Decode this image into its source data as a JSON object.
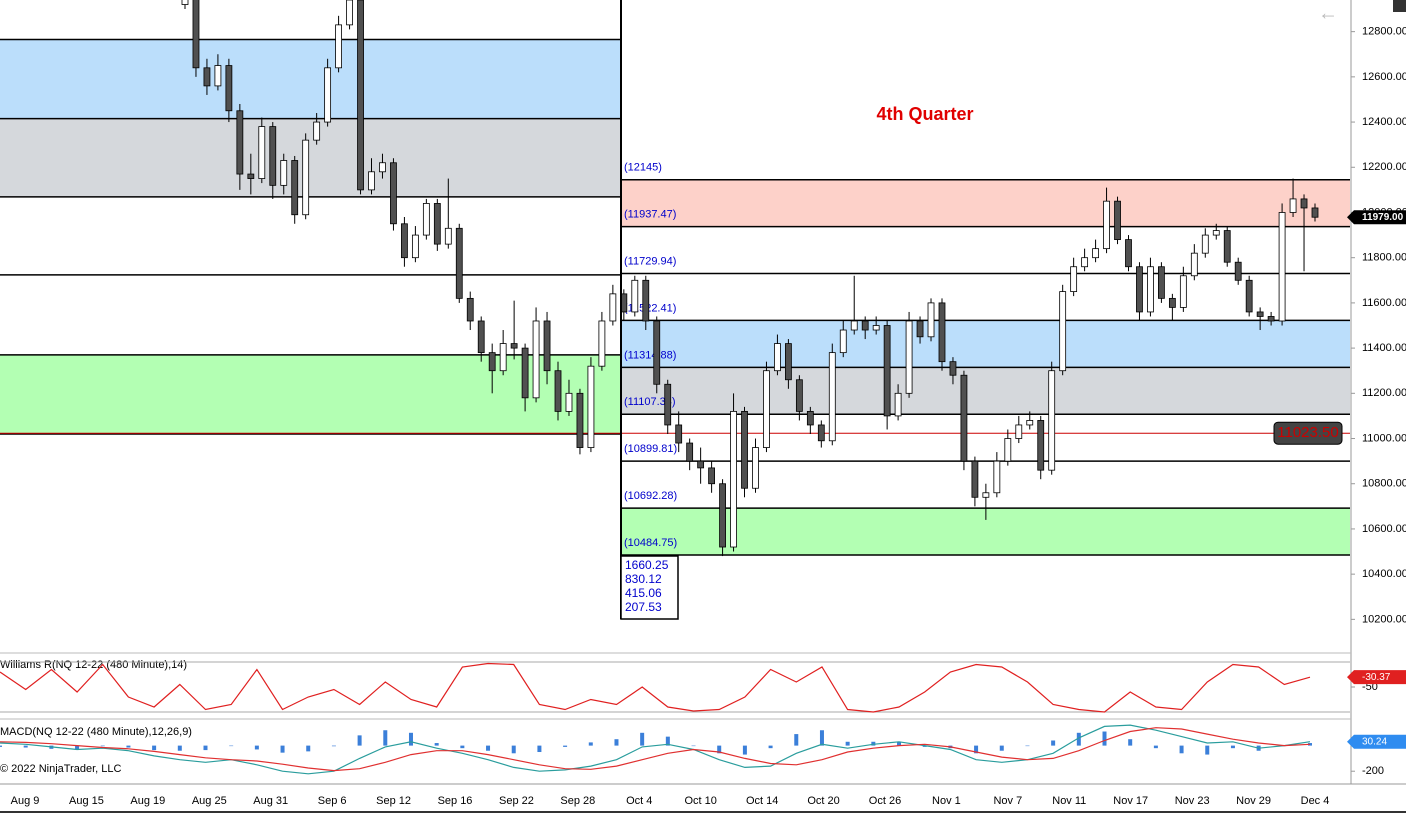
{
  "chart_data": [
    {
      "type": "candlestick",
      "title": "4th Quarter",
      "ylim": [
        10060,
        12940
      ],
      "yticks": [
        {
          "value": 12800,
          "label": "12800.00"
        },
        {
          "value": 12600,
          "label": "12600.00"
        },
        {
          "value": 12400,
          "label": "12400.00"
        },
        {
          "value": 12200,
          "label": "12200.00"
        },
        {
          "value": 12000,
          "label": "12000.00"
        },
        {
          "value": 11800,
          "label": "11800.00"
        },
        {
          "value": 11600,
          "label": "11600.00"
        },
        {
          "value": 11400,
          "label": "11400.00"
        },
        {
          "value": 11200,
          "label": "11200.00"
        },
        {
          "value": 11000,
          "label": "11000.00"
        },
        {
          "value": 10800,
          "label": "10800.00"
        },
        {
          "value": 10600,
          "label": "10600.00"
        },
        {
          "value": 10400,
          "label": "10400.00"
        },
        {
          "value": 10200,
          "label": "10200.00"
        }
      ],
      "categories": [
        "Aug 9",
        "Aug 15",
        "Aug 19",
        "Aug 25",
        "Aug 31",
        "Sep 6",
        "Sep 12",
        "Sep 16",
        "Sep 22",
        "Sep 28",
        "Oct 4",
        "Oct 10",
        "Oct 14",
        "Oct 20",
        "Oct 26",
        "Nov 1",
        "Nov 7",
        "Nov 11",
        "Nov 17",
        "Nov 23",
        "Nov 29",
        "Dec 4"
      ],
      "up_color": "#ffffff",
      "down_color": "#505050",
      "ohlc": [
        [
          12920,
          12990,
          12900,
          12950
        ],
        [
          12980,
          13000,
          12600,
          12640
        ],
        [
          12640,
          12680,
          12520,
          12560
        ],
        [
          12560,
          12700,
          12540,
          12650
        ],
        [
          12650,
          12680,
          12400,
          12450
        ],
        [
          12450,
          12480,
          12100,
          12170
        ],
        [
          12170,
          12260,
          12080,
          12150
        ],
        [
          12150,
          12420,
          12130,
          12380
        ],
        [
          12380,
          12400,
          12060,
          12120
        ],
        [
          12120,
          12260,
          12080,
          12230
        ],
        [
          12230,
          12250,
          11950,
          11990
        ],
        [
          11990,
          12350,
          11970,
          12320
        ],
        [
          12320,
          12440,
          12300,
          12400
        ],
        [
          12400,
          12680,
          12380,
          12640
        ],
        [
          12640,
          12870,
          12620,
          12830
        ],
        [
          12830,
          13000,
          12810,
          12940
        ],
        [
          12940,
          12960,
          12080,
          12100
        ],
        [
          12100,
          12240,
          12080,
          12180
        ],
        [
          12180,
          12260,
          12150,
          12220
        ],
        [
          12220,
          12240,
          11920,
          11950
        ],
        [
          11950,
          11980,
          11760,
          11800
        ],
        [
          11800,
          11940,
          11780,
          11900
        ],
        [
          11900,
          12060,
          11880,
          12040
        ],
        [
          12040,
          12060,
          11830,
          11860
        ],
        [
          11860,
          12150,
          11840,
          11930
        ],
        [
          11930,
          11950,
          11600,
          11620
        ],
        [
          11620,
          11650,
          11480,
          11520
        ],
        [
          11520,
          11540,
          11340,
          11380
        ],
        [
          11380,
          11420,
          11200,
          11300
        ],
        [
          11300,
          11480,
          11280,
          11420
        ],
        [
          11420,
          11610,
          11350,
          11400
        ],
        [
          11400,
          11420,
          11120,
          11180
        ],
        [
          11180,
          11580,
          11160,
          11520
        ],
        [
          11520,
          11560,
          11240,
          11300
        ],
        [
          11300,
          11340,
          11080,
          11120
        ],
        [
          11120,
          11260,
          11100,
          11200
        ],
        [
          11200,
          11220,
          10930,
          10960
        ],
        [
          10960,
          11360,
          10940,
          11320
        ],
        [
          11320,
          11560,
          11300,
          11520
        ],
        [
          11520,
          11680,
          11500,
          11640
        ],
        [
          11640,
          11660,
          11520,
          11560
        ],
        [
          11560,
          11720,
          11540,
          11700
        ],
        [
          11700,
          11720,
          11480,
          11520
        ],
        [
          11520,
          11540,
          11200,
          11240
        ],
        [
          11240,
          11260,
          11020,
          11060
        ],
        [
          11060,
          11120,
          10940,
          10980
        ],
        [
          10980,
          11000,
          10860,
          10900
        ],
        [
          10900,
          10960,
          10800,
          10870
        ],
        [
          10870,
          10900,
          10760,
          10800
        ],
        [
          10800,
          10820,
          10480,
          10520
        ],
        [
          10520,
          11200,
          10500,
          11120
        ],
        [
          11120,
          11140,
          10740,
          10780
        ],
        [
          10780,
          11000,
          10760,
          10960
        ],
        [
          10960,
          11340,
          10940,
          11300
        ],
        [
          11300,
          11460,
          11280,
          11420
        ],
        [
          11420,
          11440,
          11220,
          11260
        ],
        [
          11260,
          11280,
          11080,
          11120
        ],
        [
          11120,
          11140,
          11020,
          11060
        ],
        [
          11060,
          11080,
          10960,
          10990
        ],
        [
          10990,
          11420,
          10970,
          11380
        ],
        [
          11380,
          11520,
          11360,
          11480
        ],
        [
          11480,
          11720,
          11460,
          11520
        ],
        [
          11520,
          11540,
          11440,
          11480
        ],
        [
          11480,
          11540,
          11460,
          11500
        ],
        [
          11500,
          11520,
          11040,
          11100
        ],
        [
          11100,
          11240,
          11080,
          11200
        ],
        [
          11200,
          11560,
          11180,
          11520
        ],
        [
          11520,
          11540,
          11420,
          11450
        ],
        [
          11450,
          11620,
          11430,
          11600
        ],
        [
          11600,
          11620,
          11300,
          11340
        ],
        [
          11340,
          11360,
          11240,
          11280
        ],
        [
          11280,
          11300,
          10860,
          10900
        ],
        [
          10900,
          10920,
          10700,
          10740
        ],
        [
          10740,
          10800,
          10640,
          10760
        ],
        [
          10760,
          10940,
          10740,
          10900
        ],
        [
          10900,
          11040,
          10880,
          11000
        ],
        [
          11000,
          11100,
          10980,
          11060
        ],
        [
          11060,
          11120,
          11040,
          11080
        ],
        [
          11080,
          11100,
          10820,
          10860
        ],
        [
          10860,
          11340,
          10840,
          11300
        ],
        [
          11300,
          11680,
          11280,
          11650
        ],
        [
          11650,
          11800,
          11630,
          11760
        ],
        [
          11760,
          11840,
          11740,
          11800
        ],
        [
          11800,
          11880,
          11780,
          11840
        ],
        [
          11840,
          12110,
          11820,
          12050
        ],
        [
          12050,
          12070,
          11860,
          11880
        ],
        [
          11880,
          11900,
          11740,
          11760
        ],
        [
          11760,
          11780,
          11520,
          11560
        ],
        [
          11560,
          11800,
          11540,
          11760
        ],
        [
          11760,
          11780,
          11600,
          11620
        ],
        [
          11620,
          11640,
          11520,
          11580
        ],
        [
          11580,
          11760,
          11560,
          11720
        ],
        [
          11720,
          11860,
          11700,
          11820
        ],
        [
          11820,
          11930,
          11800,
          11900
        ],
        [
          11900,
          11950,
          11880,
          11920
        ],
        [
          11920,
          11940,
          11760,
          11780
        ],
        [
          11780,
          11800,
          11680,
          11700
        ],
        [
          11700,
          11720,
          11540,
          11560
        ],
        [
          11560,
          11580,
          11480,
          11540
        ],
        [
          11540,
          11560,
          11500,
          11520
        ],
        [
          11520,
          12040,
          11500,
          12000
        ],
        [
          12000,
          12150,
          11980,
          12060
        ],
        [
          12060,
          12080,
          11740,
          12020
        ],
        [
          12020,
          12040,
          11960,
          11979
        ]
      ],
      "zones_left": {
        "levels": [
          12765,
          12415,
          12069,
          11724,
          11370,
          11020
        ],
        "fills": [
          "#bbdefb",
          "#d5d8dc",
          null,
          null,
          "#b3ffb3"
        ]
      },
      "zones_right": {
        "levels": [
          {
            "value": 12145,
            "label": "(12145)"
          },
          {
            "value": 11937.47,
            "label": "(11937.47)"
          },
          {
            "value": 11729.94,
            "label": "(11729.94)"
          },
          {
            "value": 11522.41,
            "label": "(11522.41)"
          },
          {
            "value": 11314.88,
            "label": "(11314.88)"
          },
          {
            "value": 11107.34,
            "label": "(11107.34)"
          },
          {
            "value": 10899.81,
            "label": "(10899.81)"
          },
          {
            "value": 10692.28,
            "label": "(10692.28)"
          },
          {
            "value": 10484.75,
            "label": "(10484.75)"
          }
        ],
        "fills": [
          "#fdd1c9",
          null,
          null,
          "#bbdefb",
          "#d5d8dc",
          null,
          null,
          "#b3ffb3"
        ],
        "label_color": "#0000cc"
      },
      "reference_line": {
        "value": 11023.5,
        "label": "11023.50",
        "color": "#cc0000"
      },
      "last_price": {
        "value": 11979,
        "label": "11979.00"
      },
      "range_box": [
        1660.25,
        830.12,
        415.06,
        207.53
      ]
    },
    {
      "type": "line",
      "title": "Williams R(NQ 12-22 (480 Minute),14)",
      "ylim": [
        -112,
        14
      ],
      "yticks": [
        -50
      ],
      "guides": [
        0,
        -100
      ],
      "series": [
        {
          "color": "#e02020",
          "values": [
            -20,
            -55,
            -15,
            -60,
            -5,
            -70,
            -90,
            -45,
            -95,
            -85,
            -15,
            -95,
            -70,
            -55,
            -85,
            -40,
            -75,
            -90,
            -10,
            -3,
            -5,
            -85,
            -95,
            -75,
            -85,
            -50,
            -90,
            -98,
            -95,
            -70,
            -15,
            -40,
            -10,
            -95,
            -100,
            -90,
            -60,
            -20,
            -5,
            -10,
            -40,
            -85,
            -95,
            -100,
            -60,
            -90,
            -95,
            -40,
            -5,
            -10,
            -45,
            -30.37
          ]
        }
      ]
    },
    {
      "type": "macd",
      "title": "MACD(NQ 12-22 (480 Minute),12,26,9)",
      "ylim": [
        -292,
        200
      ],
      "yticks": [
        -200
      ],
      "series": [
        {
          "color": "#2a9d9d",
          "values": [
            20,
            10,
            -10,
            -30,
            -20,
            -40,
            -80,
            -110,
            -130,
            -110,
            -150,
            -200,
            -220,
            -200,
            -100,
            -10,
            30,
            -20,
            -60,
            -110,
            -170,
            -200,
            -190,
            -160,
            -110,
            -10,
            10,
            -30,
            -110,
            -170,
            -160,
            -60,
            10,
            -20,
            10,
            30,
            0,
            -30,
            -110,
            -130,
            -110,
            -60,
            60,
            150,
            160,
            120,
            70,
            20,
            30,
            -20,
            0,
            30.24
          ]
        },
        {
          "color": "#e03030",
          "values": [
            30,
            25,
            15,
            0,
            -15,
            -25,
            -45,
            -70,
            -95,
            -110,
            -120,
            -145,
            -175,
            -195,
            -180,
            -130,
            -70,
            -40,
            -40,
            -70,
            -110,
            -150,
            -180,
            -185,
            -160,
            -110,
            -60,
            -30,
            -50,
            -100,
            -140,
            -150,
            -110,
            -50,
            -20,
            0,
            10,
            -10,
            -50,
            -90,
            -110,
            -100,
            -40,
            40,
            110,
            140,
            130,
            90,
            50,
            20,
            0,
            10
          ]
        }
      ],
      "histogram": {
        "color": "#3b7fd9",
        "values": [
          -10,
          -15,
          -25,
          -30,
          -5,
          -15,
          -35,
          -40,
          -35,
          0,
          -30,
          -55,
          -45,
          -5,
          80,
          120,
          100,
          20,
          -20,
          -40,
          -60,
          -50,
          -10,
          25,
          50,
          100,
          70,
          0,
          -60,
          -70,
          -20,
          90,
          120,
          30,
          30,
          30,
          -10,
          -20,
          -60,
          -40,
          0,
          40,
          100,
          110,
          50,
          -20,
          -60,
          -70,
          -20,
          -40,
          0,
          20
        ]
      }
    }
  ],
  "copyright": "© 2022 NinjaTrader, LLC"
}
